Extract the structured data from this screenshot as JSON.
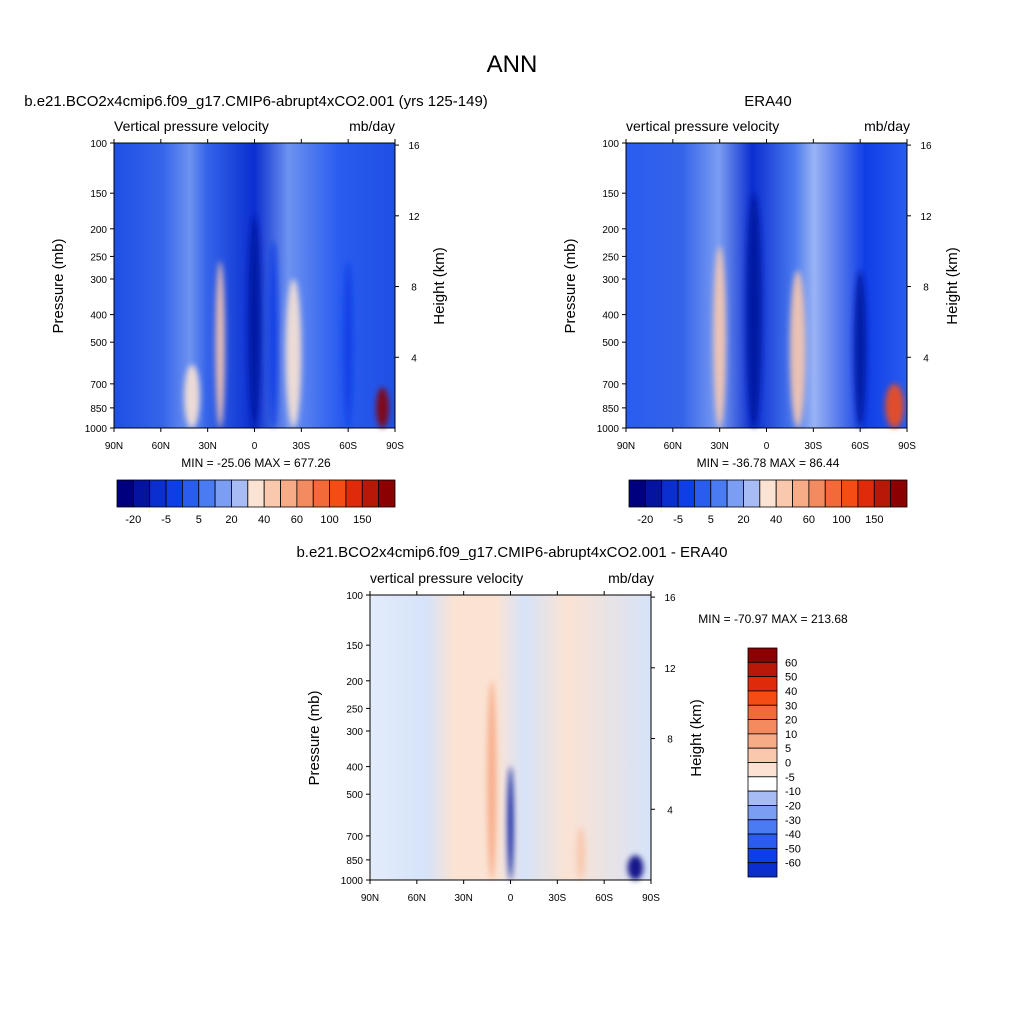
{
  "figure": {
    "title": "ANN"
  },
  "colors": {
    "blues": [
      "#00007f",
      "#0414a0",
      "#0a2ed0",
      "#0f3ee6",
      "#2a5cf0",
      "#4b7bf0",
      "#7b9df2",
      "#a7bcf4",
      "#cbd8f7",
      "#e3ecfb"
    ],
    "reds": [
      "#fbe3d3",
      "#f9c8ad",
      "#f7ab87",
      "#f48a5f",
      "#f26a37",
      "#f44c14",
      "#e02a0c",
      "#b81808",
      "#8b0000"
    ],
    "white": "#ffffff"
  },
  "chart_data": [
    {
      "id": "model",
      "type": "contour",
      "title": "b.e21.BCO2x4cmip6.f09_g17.CMIP6-abrupt4xCO2.001 (yrs 125-149)",
      "left_label": "Vertical pressure velocity",
      "right_label": "mb/day",
      "ylabel": "Pressure (mb)",
      "y2label": "Height (km)",
      "x_ticks": [
        "90N",
        "60N",
        "30N",
        "0",
        "30S",
        "60S",
        "90S"
      ],
      "y_ticks": [
        100,
        150,
        200,
        250,
        300,
        400,
        500,
        700,
        850,
        1000
      ],
      "y2_ticks": [
        16,
        12,
        8,
        4
      ],
      "min_max": "MIN = -25.06  MAX = 677.26",
      "colorbar_labels": [
        "-20",
        "-5",
        "5",
        "20",
        "40",
        "60",
        "100",
        "150"
      ],
      "features": [
        {
          "lat": 0,
          "p_top": 180,
          "half_width": 4,
          "value": -20
        },
        {
          "lat": -12,
          "p_top": 220,
          "half_width": 3,
          "value": -12
        },
        {
          "lat": 22,
          "p_top": 260,
          "half_width": 3,
          "value": 18
        },
        {
          "lat": -25,
          "p_top": 300,
          "half_width": 5,
          "value": 9
        },
        {
          "lat": -60,
          "p_top": 260,
          "half_width": 3,
          "value": -12
        },
        {
          "lat": 40,
          "p_top": 600,
          "half_width": 5,
          "value": 9
        },
        {
          "lat": -82,
          "p_top": 720,
          "half_width": 4,
          "value": 150
        }
      ]
    },
    {
      "id": "obs",
      "type": "contour",
      "title": "ERA40",
      "left_label": "vertical pressure velocity",
      "right_label": "mb/day",
      "ylabel": "Pressure (mb)",
      "y2label": "Height (km)",
      "x_ticks": [
        "90N",
        "60N",
        "30N",
        "0",
        "30S",
        "60S",
        "90S"
      ],
      "y_ticks": [
        100,
        150,
        200,
        250,
        300,
        400,
        500,
        700,
        850,
        1000
      ],
      "y2_ticks": [
        16,
        12,
        8,
        4
      ],
      "min_max": "MIN = -36.78  MAX =  86.44",
      "colorbar_labels": [
        "-20",
        "-5",
        "5",
        "20",
        "40",
        "60",
        "100",
        "150"
      ],
      "features": [
        {
          "lat": 8,
          "p_top": 150,
          "half_width": 5,
          "value": -25
        },
        {
          "lat": 30,
          "p_top": 230,
          "half_width": 4,
          "value": 15
        },
        {
          "lat": -20,
          "p_top": 280,
          "half_width": 5,
          "value": 12
        },
        {
          "lat": -60,
          "p_top": 280,
          "half_width": 4,
          "value": -20
        },
        {
          "lat": -82,
          "p_top": 700,
          "half_width": 6,
          "value": 60
        }
      ]
    },
    {
      "id": "diff",
      "type": "contour",
      "title": "b.e21.BCO2x4cmip6.f09_g17.CMIP6-abrupt4xCO2.001 - ERA40",
      "left_label": "vertical pressure velocity",
      "right_label": "mb/day",
      "ylabel": "Pressure (mb)",
      "y2label": "Height (km)",
      "x_ticks": [
        "90N",
        "60N",
        "30N",
        "0",
        "30S",
        "60S",
        "90S"
      ],
      "y_ticks": [
        100,
        150,
        200,
        250,
        300,
        400,
        500,
        700,
        850,
        1000
      ],
      "y2_ticks": [
        16,
        12,
        8,
        4
      ],
      "min_max": "MIN = -70.97  MAX = 213.68",
      "colorbar_labels": [
        "60",
        "50",
        "40",
        "30",
        "20",
        "10",
        "5",
        "0",
        "-5",
        "-10",
        "-20",
        "-30",
        "-40",
        "-50",
        "-60"
      ],
      "features": [
        {
          "lat": 12,
          "p_top": 200,
          "half_width": 3,
          "value": 20
        },
        {
          "lat": 0,
          "p_top": 400,
          "half_width": 2,
          "value": -20
        },
        {
          "lat": -45,
          "p_top": 650,
          "half_width": 3,
          "value": 10
        },
        {
          "lat": -80,
          "p_top": 820,
          "half_width": 5,
          "value": -55
        }
      ]
    }
  ]
}
